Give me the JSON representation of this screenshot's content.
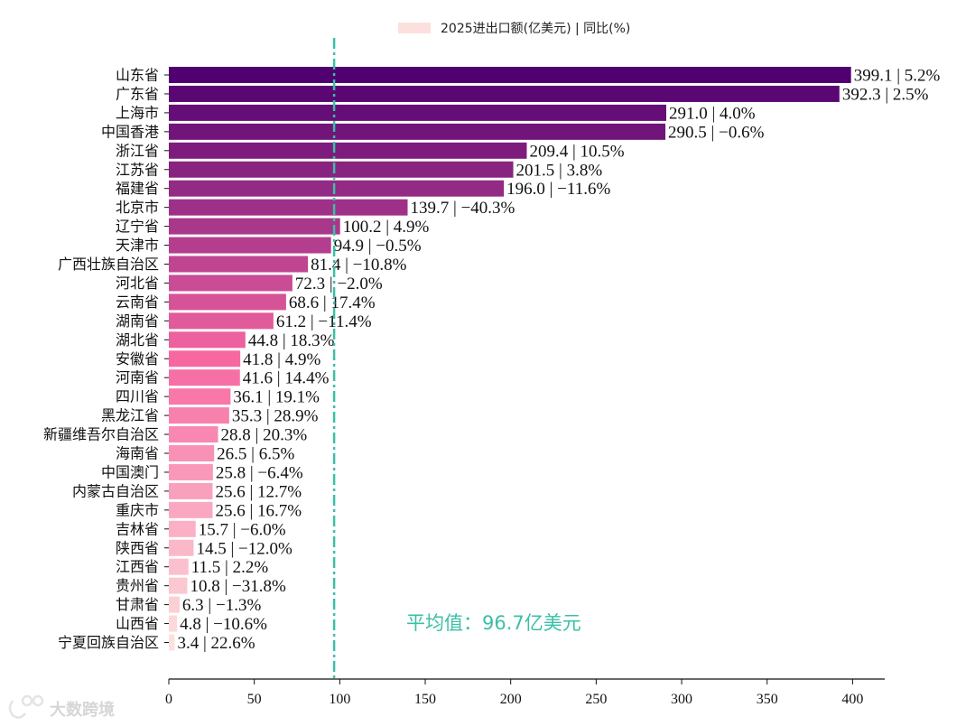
{
  "chart_data": {
    "type": "bar",
    "orientation": "horizontal",
    "legend": {
      "label": "2025进出口额(亿美元) | 同比(%)",
      "color": "#fce0dd",
      "position": "top-center"
    },
    "categories": [
      "山东省",
      "广东省",
      "上海市",
      "中国香港",
      "浙江省",
      "江苏省",
      "福建省",
      "北京市",
      "辽宁省",
      "天津市",
      "广西壮族自治区",
      "河北省",
      "云南省",
      "湖南省",
      "湖北省",
      "安徽省",
      "河南省",
      "四川省",
      "黑龙江省",
      "新疆维吾尔自治区",
      "海南省",
      "中国澳门",
      "内蒙古自治区",
      "重庆市",
      "吉林省",
      "陕西省",
      "江西省",
      "贵州省",
      "甘肃省",
      "山西省",
      "宁夏回族自治区"
    ],
    "values": [
      399.1,
      392.3,
      291.0,
      290.5,
      209.4,
      201.5,
      196.0,
      139.7,
      100.2,
      94.9,
      81.4,
      72.3,
      68.6,
      61.2,
      44.8,
      41.8,
      41.6,
      36.1,
      35.3,
      28.8,
      26.5,
      25.8,
      25.6,
      25.6,
      15.7,
      14.5,
      11.5,
      10.8,
      6.3,
      4.8,
      3.4
    ],
    "yoy": [
      "5.2%",
      "2.5%",
      "4.0%",
      "−0.6%",
      "10.5%",
      "3.8%",
      "−11.6%",
      "−40.3%",
      "4.9%",
      "−0.5%",
      "−10.8%",
      "−2.0%",
      "17.4%",
      "−11.4%",
      "18.3%",
      "4.9%",
      "14.4%",
      "19.1%",
      "28.9%",
      "20.3%",
      "6.5%",
      "−6.4%",
      "12.7%",
      "16.7%",
      "−6.0%",
      "−12.0%",
      "2.2%",
      "−31.8%",
      "−1.3%",
      "−10.6%",
      "22.6%"
    ],
    "value_labels": [
      "399.1 | 5.2%",
      "392.3 | 2.5%",
      "291.0 | 4.0%",
      "290.5 | −0.6%",
      "209.4 | 10.5%",
      "201.5 | 3.8%",
      "196.0 | −11.6%",
      "139.7 | −40.3%",
      "100.2 | 4.9%",
      "94.9 | −0.5%",
      "81.4 | −10.8%",
      "72.3 | −2.0%",
      "68.6 | 17.4%",
      "61.2 | −11.4%",
      "44.8 | 18.3%",
      "41.8 | 4.9%",
      "41.6 | 14.4%",
      "36.1 | 19.1%",
      "35.3 | 28.9%",
      "28.8 | 20.3%",
      "26.5 | 6.5%",
      "25.8 | −6.4%",
      "25.6 | 12.7%",
      "25.6 | 16.7%",
      "15.7 | −6.0%",
      "14.5 | −12.0%",
      "11.5 | 2.2%",
      "10.8 | −31.8%",
      "6.3 | −1.3%",
      "4.8 | −10.6%",
      "3.4 | 22.6%"
    ],
    "xlim": [
      0,
      420
    ],
    "xticks": [
      0,
      50,
      100,
      150,
      200,
      250,
      300,
      350,
      400
    ],
    "average": {
      "value": 96.7,
      "label": "平均值：96.7亿美元",
      "color": "#3bbfa7"
    },
    "colormap": {
      "low": "#fce0dd",
      "mid": "#f768a1",
      "high": "#500070"
    },
    "title": "",
    "xlabel": "",
    "ylabel": ""
  },
  "watermark": {
    "text": "大数跨境",
    "icon": "logo-icon"
  }
}
